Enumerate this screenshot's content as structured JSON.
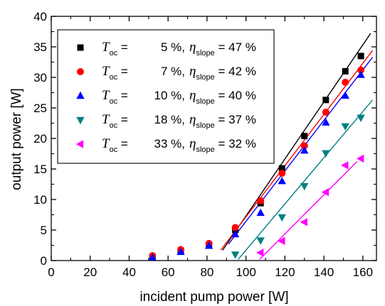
{
  "chart_data": {
    "type": "scatter",
    "title": "",
    "xlabel": "incident pump power [W]",
    "ylabel": "output power [W]",
    "xlim": [
      0,
      167
    ],
    "ylim": [
      0,
      40
    ],
    "xticks": [
      0,
      20,
      40,
      60,
      80,
      100,
      120,
      140,
      160
    ],
    "yticks": [
      0,
      5,
      10,
      15,
      20,
      25,
      30,
      35,
      40
    ],
    "grid": false,
    "legend_placement": "top-left",
    "series": [
      {
        "legend": {
          "var": "T",
          "sub": "oc",
          "value": "5 %",
          "eta": "η",
          "eta_sub": "slope",
          "eta_value": "47 %"
        },
        "marker": "square",
        "color": "#000000",
        "points": [
          [
            52,
            0.6
          ],
          [
            66.5,
            1.6
          ],
          [
            81,
            2.5
          ],
          [
            94.5,
            5.0
          ],
          [
            107.5,
            9.4
          ],
          [
            118.5,
            15.1
          ],
          [
            130,
            20.4
          ],
          [
            141,
            26.3
          ],
          [
            151,
            31.0
          ],
          [
            159,
            33.5
          ]
        ],
        "fit": [
          [
            88,
            1.7
          ],
          [
            164,
            37.2
          ]
        ]
      },
      {
        "legend": {
          "var": "T",
          "sub": "oc",
          "value": "7 %",
          "eta": "η",
          "eta_sub": "slope",
          "eta_value": "42 %"
        },
        "marker": "circle",
        "color": "#ff0000",
        "points": [
          [
            52,
            0.8
          ],
          [
            66.5,
            1.8
          ],
          [
            81,
            2.8
          ],
          [
            94.5,
            5.4
          ],
          [
            107.5,
            9.8
          ],
          [
            118.5,
            14.3
          ],
          [
            130,
            18.8
          ],
          [
            141,
            24.3
          ],
          [
            151,
            29.2
          ],
          [
            159,
            31.2
          ]
        ],
        "fit": [
          [
            87,
            1.7
          ],
          [
            165,
            34.4
          ]
        ]
      },
      {
        "legend": {
          "var": "T",
          "sub": "oc",
          "value": "10 %",
          "eta": "η",
          "eta_sub": "slope",
          "eta_value": "40 %"
        },
        "marker": "triangle-up",
        "color": "#0000ff",
        "points": [
          [
            52,
            0.5
          ],
          [
            66.5,
            1.4
          ],
          [
            81,
            2.4
          ],
          [
            94.5,
            4.3
          ],
          [
            107.5,
            7.8
          ],
          [
            118.5,
            13.0
          ],
          [
            130,
            18.0
          ],
          [
            141,
            22.6
          ],
          [
            151,
            27.0
          ],
          [
            159,
            30.4
          ]
        ],
        "fit": [
          [
            91,
            2.7
          ],
          [
            165,
            33.3
          ]
        ]
      },
      {
        "legend": {
          "var": "T",
          "sub": "oc",
          "value": "18 %",
          "eta": "η",
          "eta_sub": "slope",
          "eta_value": "37 %"
        },
        "marker": "triangle-down",
        "color": "#008080",
        "points": [
          [
            94.5,
            1.0
          ],
          [
            107.5,
            3.3
          ],
          [
            118.5,
            7.1
          ],
          [
            130,
            12.2
          ],
          [
            141,
            17.6
          ],
          [
            151,
            22.0
          ],
          [
            159,
            23.4
          ]
        ],
        "fit": [
          [
            96,
            0.2
          ],
          [
            165,
            26.3
          ]
        ]
      },
      {
        "legend": {
          "var": "T",
          "sub": "oc",
          "value": "33 %",
          "eta": "η",
          "eta_sub": "slope",
          "eta_value": "32 %"
        },
        "marker": "triangle-left",
        "color": "#ff00ff",
        "points": [
          [
            107.5,
            1.3
          ],
          [
            118.5,
            3.2
          ],
          [
            130,
            6.3
          ],
          [
            141,
            11.2
          ],
          [
            151,
            15.6
          ],
          [
            159,
            16.7
          ]
        ],
        "fit": [
          [
            107,
            0.2
          ],
          [
            157,
            16.2
          ]
        ]
      }
    ]
  }
}
